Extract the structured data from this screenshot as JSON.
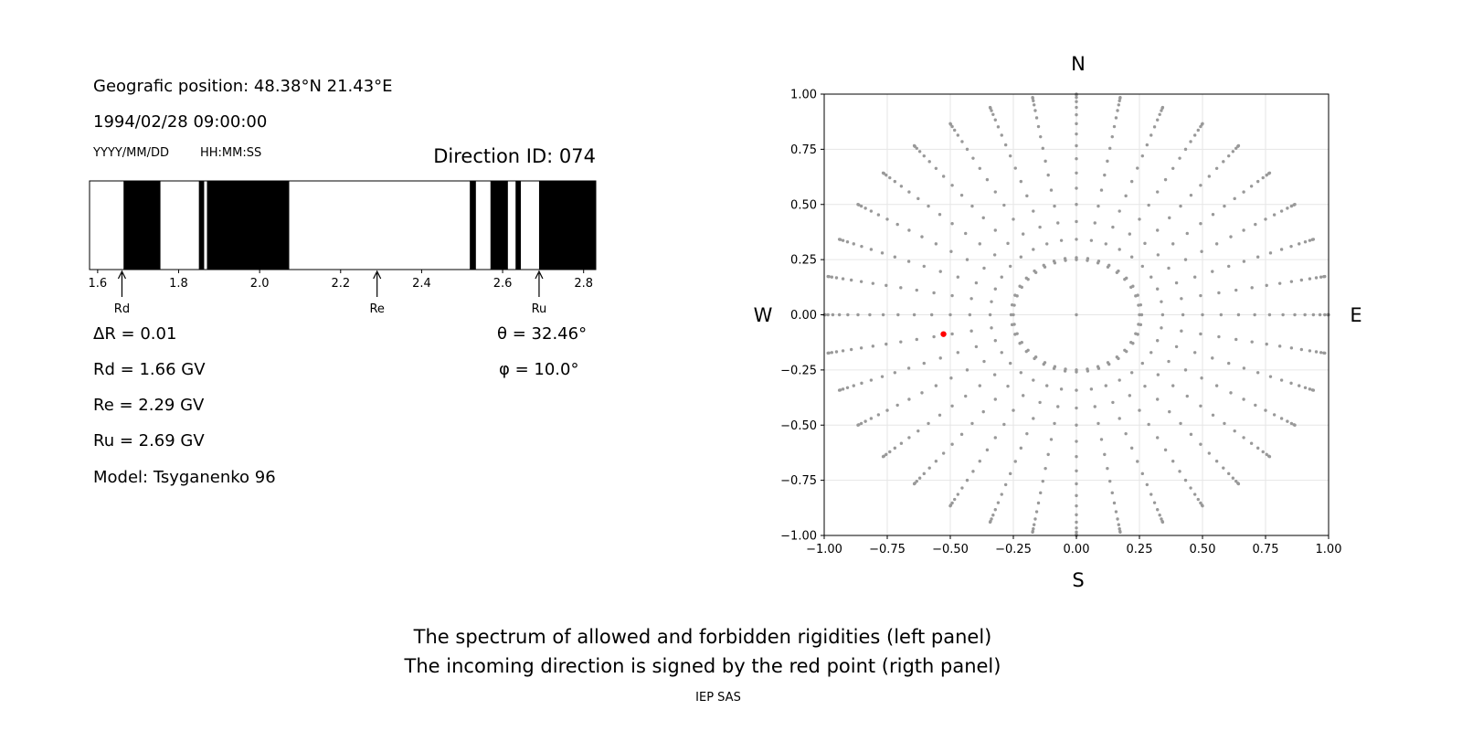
{
  "header": {
    "position_text": "Geografic position: 48.38°N 21.43°E",
    "datetime": "1994/02/28 09:00:00",
    "date_format_label": "YYYY/MM/DD",
    "time_format_label": "HH:MM:SS",
    "direction_id": "Direction ID: 074"
  },
  "params": {
    "delta_r": "ΔR = 0.01",
    "rd": "Rd = 1.66 GV",
    "re": "Re = 2.29 GV",
    "ru": "Ru = 2.69 GV",
    "model": "Model: Tsyganenko 96",
    "theta": "θ = 32.46°",
    "phi": "φ = 10.0°"
  },
  "compass": {
    "north": "N",
    "south": "S",
    "west": "W",
    "east": "E"
  },
  "footer": {
    "line1": "The spectrum of allowed and forbidden rigidities (left panel)",
    "line2": "The incoming direction is signed by the red point (rigth panel)",
    "credit": "IEP SAS"
  },
  "colors": {
    "forbidden": "#000000",
    "allowed": "#ffffff",
    "grid_point": "#999999",
    "incoming_point": "#ff0000"
  },
  "chart_data": [
    {
      "type": "bar",
      "name": "rigidity-spectrum",
      "xlim": [
        1.58,
        2.83
      ],
      "x_ticks": [
        1.6,
        1.8,
        2.0,
        2.2,
        2.4,
        2.6,
        2.8
      ],
      "x_tick_labels": [
        "1.6",
        "1.8",
        "2.0",
        "2.2",
        "2.4",
        "2.6",
        "2.8"
      ],
      "forbidden_bands": [
        [
          1.664,
          1.755
        ],
        [
          1.85,
          1.863
        ],
        [
          1.87,
          2.073
        ],
        [
          2.519,
          2.534
        ],
        [
          2.57,
          2.613
        ],
        [
          2.632,
          2.645
        ],
        [
          2.69,
          2.83
        ]
      ],
      "markers": [
        {
          "label": "Rd",
          "value": 1.66
        },
        {
          "label": "Re",
          "value": 2.29
        },
        {
          "label": "Ru",
          "value": 2.69
        }
      ]
    },
    {
      "type": "scatter",
      "name": "incoming-directions",
      "xlim": [
        -1.0,
        1.0
      ],
      "ylim": [
        -1.0,
        1.0
      ],
      "x_ticks": [
        -1.0,
        -0.75,
        -0.5,
        -0.25,
        0.0,
        0.25,
        0.5,
        0.75,
        1.0
      ],
      "x_tick_labels": [
        "−1.00",
        "−0.75",
        "−0.50",
        "−0.25",
        "0.00",
        "0.25",
        "0.50",
        "0.75",
        "1.00"
      ],
      "y_ticks": [
        -1.0,
        -0.75,
        -0.5,
        -0.25,
        0.0,
        0.25,
        0.5,
        0.75,
        1.0
      ],
      "y_tick_labels": [
        "−1.00",
        "−0.75",
        "−0.50",
        "−0.25",
        "0.00",
        "0.25",
        "0.50",
        "0.75",
        "1.00"
      ],
      "grid": true,
      "direction_grid": {
        "center": [
          0.0,
          0.0
        ],
        "azimuth_step_deg": 10,
        "radial_distances": [
          0.0872,
          0.1736,
          0.2588,
          0.342,
          0.4226,
          0.5,
          0.5736,
          0.6428,
          0.7071,
          0.766,
          0.8192,
          0.866,
          0.9063,
          0.9397,
          0.9659,
          0.9848,
          0.9962,
          1.0
        ],
        "inner_ring_radius": 0.25,
        "inner_ring_points": 36
      },
      "highlight_point": {
        "x": -0.527,
        "y": -0.0876
      }
    }
  ]
}
